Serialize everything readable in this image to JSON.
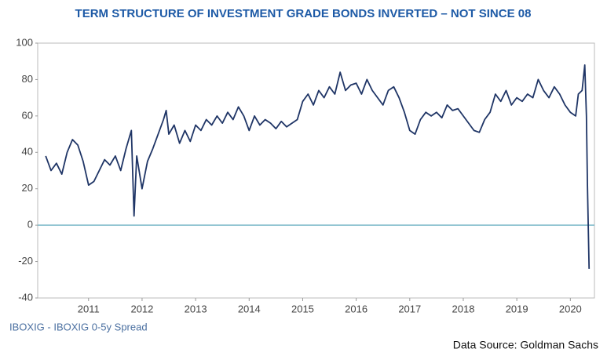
{
  "chart_data": {
    "type": "line",
    "title": "TERM STRUCTURE OF INVESTMENT GRADE BONDS INVERTED – NOT SINCE 08",
    "series_label": "IBOXIG - IBOXIG 0-5y Spread",
    "source": "Data Source: Goldman Sachs",
    "x": [
      2010.2,
      2010.3,
      2010.4,
      2010.5,
      2010.6,
      2010.7,
      2010.8,
      2010.9,
      2011.0,
      2011.1,
      2011.2,
      2011.3,
      2011.4,
      2011.5,
      2011.6,
      2011.7,
      2011.8,
      2011.85,
      2011.9,
      2012.0,
      2012.1,
      2012.2,
      2012.3,
      2012.4,
      2012.45,
      2012.5,
      2012.6,
      2012.7,
      2012.8,
      2012.9,
      2013.0,
      2013.1,
      2013.2,
      2013.3,
      2013.4,
      2013.5,
      2013.6,
      2013.7,
      2013.8,
      2013.9,
      2014.0,
      2014.1,
      2014.2,
      2014.3,
      2014.4,
      2014.5,
      2014.6,
      2014.7,
      2014.8,
      2014.9,
      2015.0,
      2015.1,
      2015.2,
      2015.3,
      2015.4,
      2015.5,
      2015.6,
      2015.7,
      2015.8,
      2015.9,
      2016.0,
      2016.1,
      2016.2,
      2016.3,
      2016.4,
      2016.5,
      2016.6,
      2016.7,
      2016.8,
      2016.9,
      2017.0,
      2017.1,
      2017.2,
      2017.3,
      2017.4,
      2017.5,
      2017.6,
      2017.7,
      2017.8,
      2017.9,
      2018.0,
      2018.1,
      2018.2,
      2018.3,
      2018.4,
      2018.5,
      2018.6,
      2018.7,
      2018.8,
      2018.9,
      2019.0,
      2019.1,
      2019.2,
      2019.3,
      2019.4,
      2019.5,
      2019.6,
      2019.7,
      2019.8,
      2019.9,
      2020.0,
      2020.1,
      2020.15,
      2020.22,
      2020.27,
      2020.3,
      2020.32,
      2020.35
    ],
    "series": [
      {
        "name": "IBOXIG - IBOXIG 0-5y Spread",
        "color": "#1f3566",
        "values": [
          38,
          30,
          34,
          28,
          40,
          47,
          44,
          35,
          22,
          24,
          30,
          36,
          33,
          38,
          30,
          42,
          52,
          5,
          38,
          20,
          35,
          42,
          50,
          58,
          63,
          50,
          55,
          45,
          52,
          46,
          55,
          52,
          58,
          55,
          60,
          56,
          62,
          58,
          65,
          60,
          52,
          60,
          55,
          58,
          56,
          53,
          57,
          54,
          56,
          58,
          68,
          72,
          66,
          74,
          70,
          76,
          72,
          84,
          74,
          77,
          78,
          72,
          80,
          74,
          70,
          66,
          74,
          76,
          70,
          62,
          52,
          50,
          58,
          62,
          60,
          62,
          59,
          66,
          63,
          64,
          60,
          56,
          52,
          51,
          58,
          62,
          72,
          68,
          74,
          66,
          70,
          68,
          72,
          70,
          80,
          74,
          70,
          76,
          72,
          66,
          62,
          60,
          72,
          74,
          88,
          60,
          22,
          -24
        ]
      }
    ],
    "xlim": [
      2010.05,
      2020.45
    ],
    "xticks": [
      2011,
      2012,
      2013,
      2014,
      2015,
      2016,
      2017,
      2018,
      2019,
      2020
    ],
    "ylim": [
      -40,
      100
    ],
    "yticks": [
      -40,
      -20,
      0,
      20,
      40,
      60,
      80,
      100
    ],
    "zero_line_color": "#7ab8c8"
  }
}
